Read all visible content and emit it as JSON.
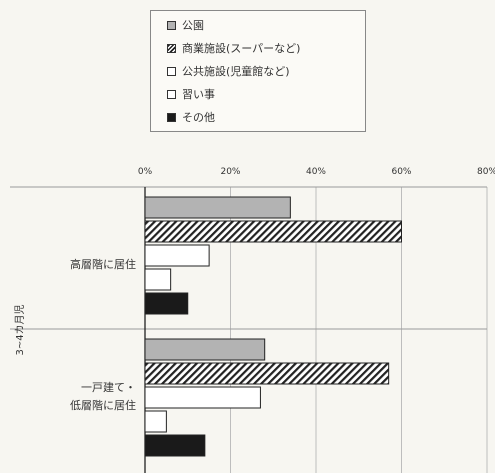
{
  "chart_data": {
    "type": "bar",
    "orientation": "horizontal",
    "series": [
      {
        "name": "公園",
        "values": [
          34,
          28
        ],
        "color": "#b3b3b3",
        "pattern": "solid"
      },
      {
        "name": "商業施設(スーパーなど)",
        "values": [
          60,
          57
        ],
        "color": "#ffffff",
        "pattern": "diagonal-hatch"
      },
      {
        "name": "公共施設(児童館など)",
        "values": [
          15,
          27
        ],
        "color": "#ffffff",
        "pattern": "outline"
      },
      {
        "name": "習い事",
        "values": [
          6,
          5
        ],
        "color": "#ffffff",
        "pattern": "outline"
      },
      {
        "name": "その他",
        "values": [
          10,
          14
        ],
        "color": "#1a1a1a",
        "pattern": "solid"
      }
    ],
    "categories": [
      {
        "lines": [
          "高層階に居住"
        ]
      },
      {
        "lines": [
          "一戸建て・",
          "低層階に居住"
        ]
      }
    ],
    "group_label": "3~4カ月児",
    "x_ticks": [
      "0%",
      "20%",
      "40%",
      "60%",
      "80%"
    ],
    "xlim": [
      0,
      80
    ],
    "grid": true,
    "legend_position": "top"
  }
}
